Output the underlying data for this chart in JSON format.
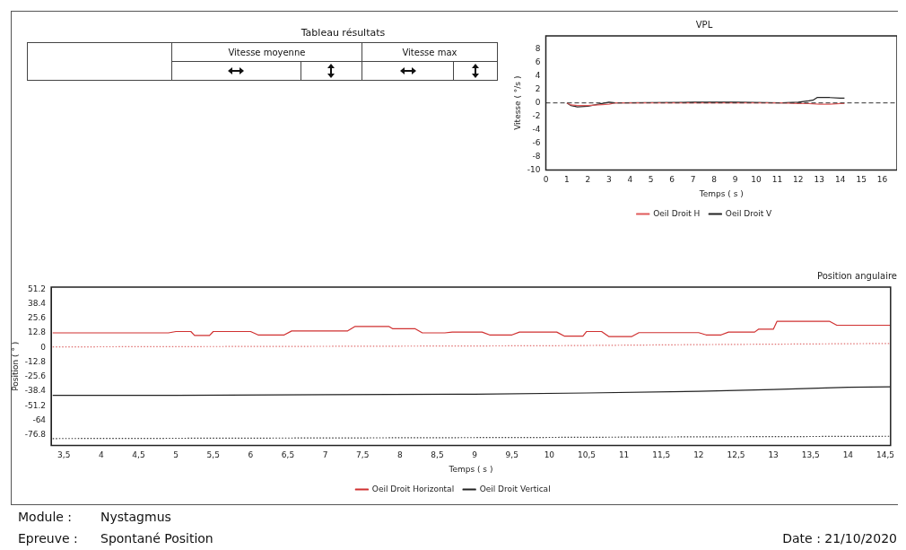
{
  "chart_data": [
    {
      "type": "other",
      "title": "Tableau résultats",
      "annotations": [
        "Vitesse moyenne",
        "Vitesse max",
        "Module :",
        "Nystagmus",
        "Epreuve :",
        "Spontané Position",
        "Date : 21/10/2020"
      ]
    },
    {
      "type": "line",
      "title": "VPL",
      "xlabel": "Temps ( s )",
      "ylabel": "Vitesse ( °/s )",
      "xlim": [
        0,
        16.7
      ],
      "xticks": [
        0,
        1,
        2,
        3,
        4,
        5,
        6,
        7,
        8,
        9,
        10,
        11,
        12,
        13,
        14,
        15,
        16
      ],
      "ylim": [
        -10,
        10
      ],
      "yticks": [
        -10,
        -8,
        -6,
        -4,
        -2,
        0,
        2,
        4,
        6,
        8
      ],
      "legend": "bottom",
      "ref_lines": [
        {
          "axis": "y",
          "value": 0,
          "color": "#333333",
          "line_style": "dashed"
        }
      ],
      "series": [
        {
          "name": "Oeil Droit H",
          "color": "#e05a5a",
          "x": [
            1,
            1.2,
            1.5,
            2,
            2.5,
            3,
            3.3,
            7,
            9,
            11.2,
            12,
            12.5,
            13,
            13.5,
            14,
            14.2
          ],
          "values": [
            0,
            -0.3,
            -0.4,
            -0.4,
            -0.3,
            -0.2,
            0,
            0,
            0,
            0,
            -0.1,
            -0.1,
            -0.2,
            -0.2,
            -0.1,
            -0.1
          ]
        },
        {
          "name": "Oeil Droit V",
          "color": "#222222",
          "x": [
            1,
            1.2,
            1.5,
            2,
            2.5,
            3,
            3.3,
            7,
            9,
            11.2,
            12,
            12.5,
            12.7,
            12.9,
            13.5,
            14,
            14.2
          ],
          "values": [
            0,
            -0.4,
            -0.6,
            -0.5,
            -0.2,
            0.1,
            0,
            0.1,
            0.1,
            0,
            0.1,
            0.3,
            0.4,
            0.8,
            0.8,
            0.7,
            0.7
          ]
        }
      ]
    },
    {
      "type": "line",
      "title": "Position angulaire",
      "xlabel": "Temps ( s )",
      "ylabel": "Position ( ° )",
      "xlim": [
        3.33,
        14.57
      ],
      "ylim": [
        -86,
        53
      ],
      "legend": "bottom",
      "xticks": [
        {
          "value": 3.5,
          "label": "3,5"
        },
        4,
        {
          "value": 4.5,
          "label": "4,5"
        },
        5,
        {
          "value": 5.5,
          "label": "5,5"
        },
        6,
        {
          "value": 6.5,
          "label": "6,5"
        },
        7,
        {
          "value": 7.5,
          "label": "7,5"
        },
        8,
        {
          "value": 8.5,
          "label": "8,5"
        },
        9,
        {
          "value": 9.5,
          "label": "9,5"
        },
        10,
        {
          "value": 10.5,
          "label": "10,5"
        },
        11,
        {
          "value": 11.5,
          "label": "11,5"
        },
        12,
        {
          "value": 12.5,
          "label": "12,5"
        },
        13,
        {
          "value": 13.5,
          "label": "13,5"
        },
        14,
        {
          "value": 14.5,
          "label": "14,5"
        }
      ],
      "yticks": [
        -76.8,
        -64,
        -51.2,
        -38.4,
        -25.6,
        -12.8,
        0,
        12.8,
        25.6,
        38.4,
        51.2
      ],
      "series": [
        {
          "name": "Oeil Droit Horizontal",
          "color": "#d03030",
          "x": [
            3.35,
            4.9,
            5.0,
            5.2,
            5.25,
            5.45,
            5.5,
            6.0,
            6.1,
            6.45,
            6.55,
            7.3,
            7.4,
            7.85,
            7.9,
            8.2,
            8.3,
            8.6,
            8.7,
            9.1,
            9.2,
            9.5,
            9.6,
            10.1,
            10.2,
            10.45,
            10.5,
            10.7,
            10.8,
            11.1,
            11.2,
            12.0,
            12.1,
            12.3,
            12.4,
            12.75,
            12.8,
            13.0,
            13.05,
            13.75,
            13.85,
            14.57
          ],
          "values": [
            12.8,
            12.8,
            14,
            14,
            10.5,
            10.5,
            14,
            14,
            11,
            11,
            14.5,
            14.5,
            18.5,
            18.5,
            16.5,
            16.5,
            12.8,
            12.8,
            13.5,
            13.5,
            11,
            11,
            13.5,
            13.5,
            10,
            10,
            14,
            14,
            9.5,
            9.5,
            13,
            13,
            11,
            11,
            13.5,
            13.5,
            16,
            16,
            23,
            23,
            19.5,
            19.5
          ]
        },
        {
          "name": "Oeil Droit Vertical",
          "color": "#222222",
          "x": [
            3.35,
            5,
            7,
            9,
            10.5,
            12,
            13,
            14,
            14.57
          ],
          "values": [
            -42,
            -42,
            -41.5,
            -41,
            -40,
            -38.5,
            -37,
            -35,
            -34.5
          ]
        },
        {
          "color": "#e07070",
          "line_style": "dotted",
          "x": [
            3.35,
            7,
            10,
            12,
            14.57
          ],
          "values": [
            0.5,
            1,
            1.5,
            2.5,
            3.5
          ]
        },
        {
          "color": "#333333",
          "line_style": "dotted",
          "x": [
            3.35,
            7,
            10,
            12,
            14.57
          ],
          "values": [
            -80,
            -79.5,
            -79,
            -78.5,
            -78
          ]
        }
      ]
    }
  ]
}
